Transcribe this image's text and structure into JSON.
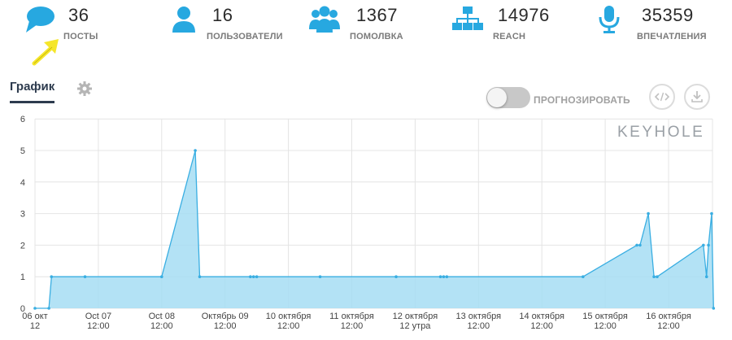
{
  "stats": [
    {
      "value": "36",
      "label": "ПОСТЫ",
      "icon": "speech-bubble-icon"
    },
    {
      "value": "16",
      "label": "ПОЛЬЗОВАТЕЛИ",
      "icon": "user-icon"
    },
    {
      "value": "1367",
      "label": "ПОМОЛВКА",
      "icon": "group-icon"
    },
    {
      "value": "14976",
      "label": "REACH",
      "icon": "network-icon"
    },
    {
      "value": "35359",
      "label": "ВПЕЧАТЛЕНИЯ",
      "icon": "microphone-icon"
    }
  ],
  "colors": {
    "accent": "#27a8e0",
    "area_fill": "#a6ddf3",
    "line": "#39aee2",
    "arrow": "#f5e62a"
  },
  "tab": {
    "label": "График"
  },
  "toggle": {
    "label": "ПРОГНОЗИРОВАТЬ",
    "state": "off"
  },
  "watermark": "KEYHOLE",
  "chart_data": {
    "type": "area",
    "xlabel": "",
    "ylabel": "",
    "ylim": [
      0,
      6
    ],
    "yticks": [
      "0",
      "1",
      "2",
      "3",
      "4",
      "5",
      "6"
    ],
    "xticks": [
      {
        "x": 0,
        "lines": [
          "06 окт",
          "12"
        ]
      },
      {
        "x": 1,
        "lines": [
          "Oct 07",
          "12:00"
        ]
      },
      {
        "x": 2,
        "lines": [
          "Oct 08",
          "12:00"
        ]
      },
      {
        "x": 3,
        "lines": [
          "Октябрь 09",
          "12:00"
        ]
      },
      {
        "x": 4,
        "lines": [
          "10 октября",
          "12:00"
        ]
      },
      {
        "x": 5,
        "lines": [
          "11 октября",
          "12:00"
        ]
      },
      {
        "x": 6,
        "lines": [
          "12 октября",
          "12 утра"
        ]
      },
      {
        "x": 7,
        "lines": [
          "13 октября",
          "12:00"
        ]
      },
      {
        "x": 8,
        "lines": [
          "14 октября",
          "12:00"
        ]
      },
      {
        "x": 9,
        "lines": [
          "15 октября",
          "12:00"
        ]
      },
      {
        "x": 10,
        "lines": [
          "16 октября",
          "12:00"
        ]
      }
    ],
    "points": [
      [
        0,
        0
      ],
      [
        0.22,
        0
      ],
      [
        0.26,
        1
      ],
      [
        0.79,
        1
      ],
      [
        2.0,
        1
      ],
      [
        2.53,
        5
      ],
      [
        2.6,
        1
      ],
      [
        3.4,
        1
      ],
      [
        3.45,
        1
      ],
      [
        3.5,
        1
      ],
      [
        4.5,
        1
      ],
      [
        5.7,
        1
      ],
      [
        6.4,
        1
      ],
      [
        6.45,
        1
      ],
      [
        6.5,
        1
      ],
      [
        8.65,
        1
      ],
      [
        9.5,
        2
      ],
      [
        9.55,
        2
      ],
      [
        9.68,
        3
      ],
      [
        9.77,
        1
      ],
      [
        9.82,
        1
      ],
      [
        10.55,
        2
      ],
      [
        10.6,
        1
      ],
      [
        10.63,
        2
      ],
      [
        10.68,
        3
      ],
      [
        10.71,
        0
      ]
    ]
  }
}
